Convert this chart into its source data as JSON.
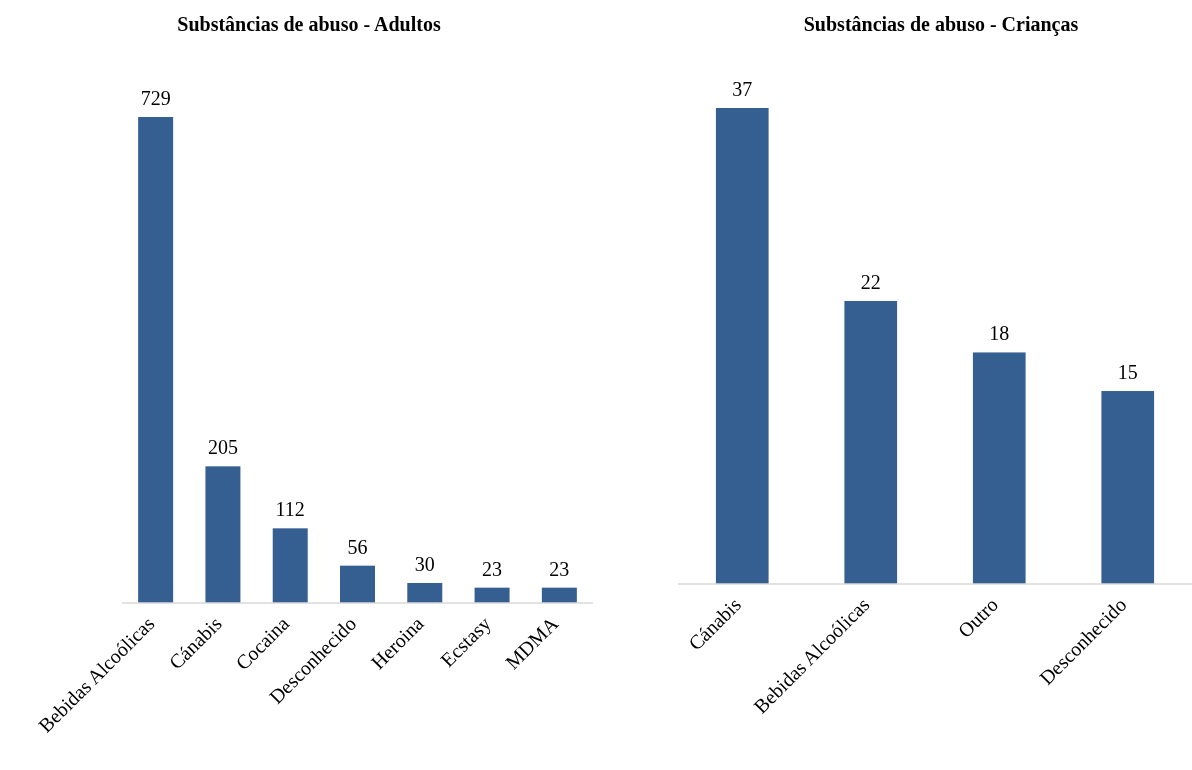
{
  "chart_data": [
    {
      "type": "bar",
      "title": "Substâncias de abuso - Adultos",
      "categories": [
        "Bebidas Alcoólicas",
        "Cánabis",
        "Cocaina",
        "Desconhecido",
        "Heroina",
        "Ecstasy",
        "MDMA"
      ],
      "values": [
        729,
        205,
        112,
        56,
        30,
        23,
        23
      ],
      "color": "#365f91",
      "data_labels": true
    },
    {
      "type": "bar",
      "title": "Substâncias de abuso - Crianças",
      "categories": [
        "Cánabis",
        "Bebidas Alcoólicas",
        "Outro",
        "Desconhecido"
      ],
      "values": [
        37,
        22,
        18,
        15
      ],
      "color": "#365f91",
      "data_labels": true
    }
  ]
}
